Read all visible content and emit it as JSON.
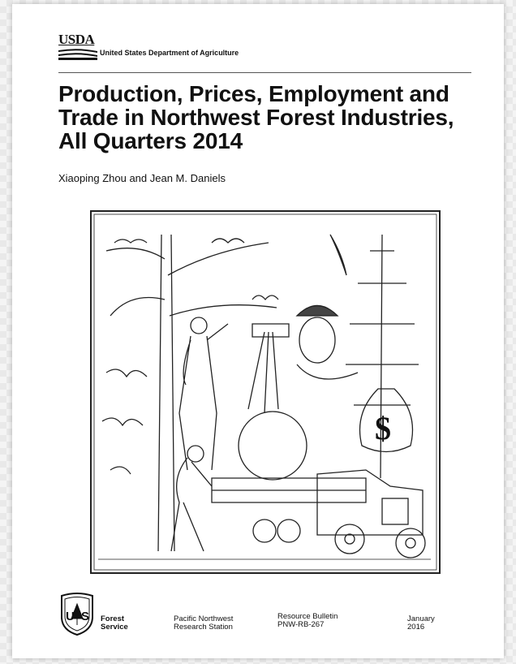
{
  "header": {
    "agency_short": "USDA",
    "agency_full": "United States Department of Agriculture"
  },
  "title": "Production, Prices, Employment and Trade in Northwest Forest Industries, All Quarters 2014",
  "authors": "Xiaoping Zhou and Jean M. Daniels",
  "footer": {
    "logo": [
      "U",
      "S"
    ],
    "forest_service": [
      "Forest",
      "Service"
    ],
    "station": [
      "Pacific Northwest",
      "Research Station"
    ],
    "series": [
      "Resource Bulletin",
      "PNW-RB-267"
    ],
    "date": [
      "January",
      "2016"
    ]
  }
}
